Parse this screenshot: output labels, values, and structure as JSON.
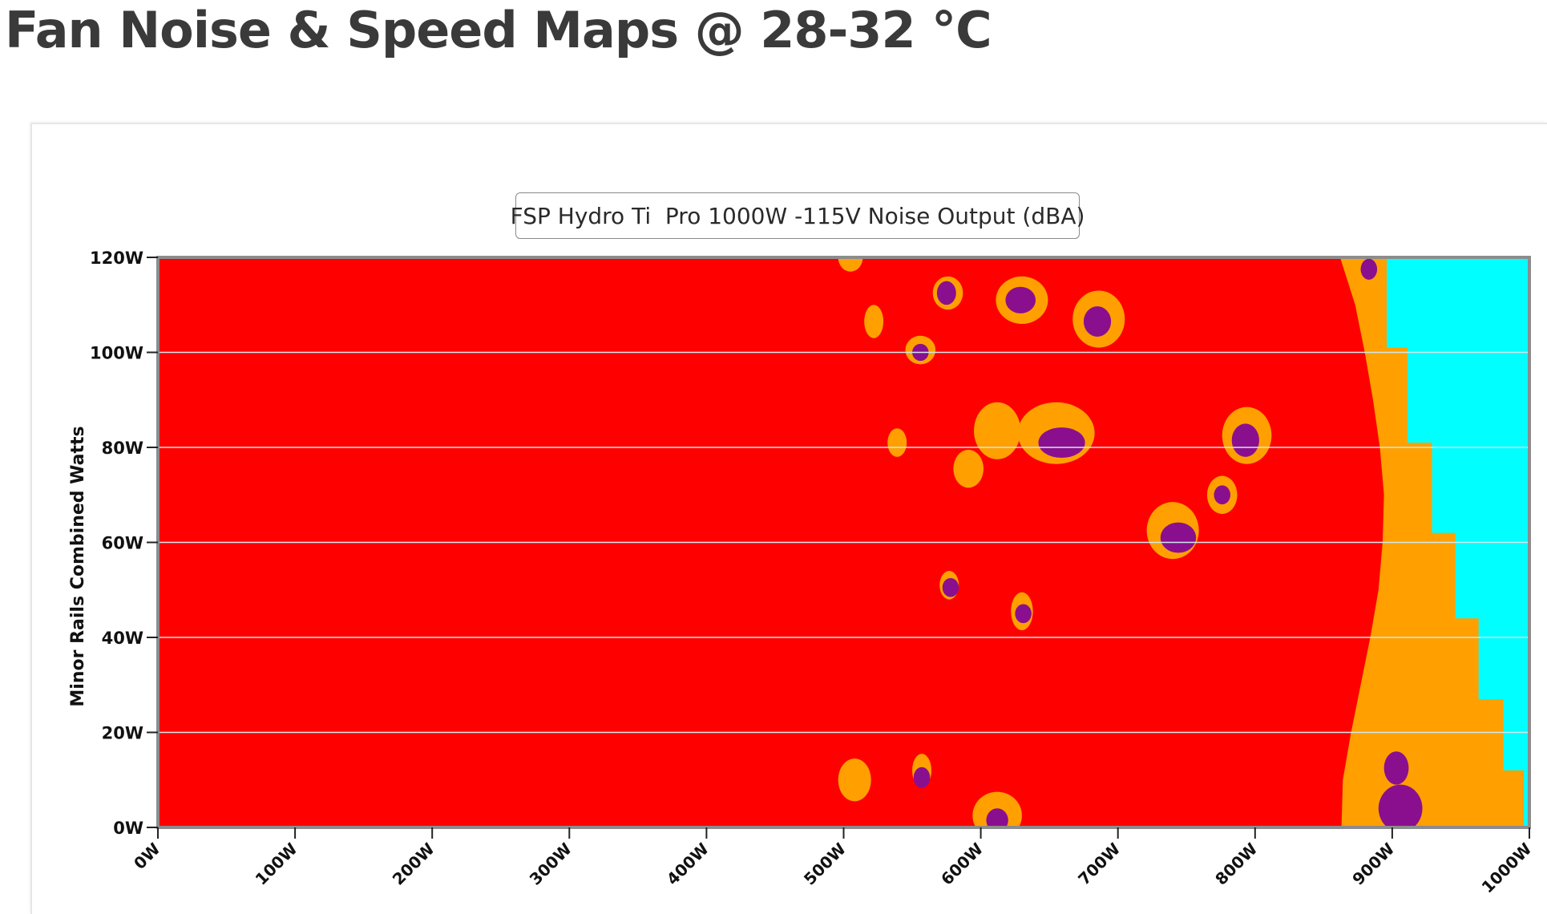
{
  "page": {
    "title": "Fan Noise & Speed Maps @ 28-32 °C"
  },
  "chart_data": {
    "type": "heatmap",
    "legend_label": "FSP Hydro Ti  Pro 1000W -115V Noise Output (dBA)",
    "xlabel": "",
    "ylabel": "Minor Rails Combined Watts",
    "x_tick_labels": [
      "0W",
      "100W",
      "200W",
      "300W",
      "400W",
      "500W",
      "600W",
      "700W",
      "800W",
      "900W",
      "1000W"
    ],
    "y_tick_labels": [
      "0W",
      "20W",
      "40W",
      "60W",
      "80W",
      "100W",
      "120W"
    ],
    "xlim": [
      0,
      1000
    ],
    "ylim": [
      0,
      120
    ],
    "grid": true,
    "colors": {
      "base": "#ff0000",
      "orange": "#ffa000",
      "purple": "#8a0f8f",
      "cyan": "#00ffff",
      "plot_border": "#8c8c8c",
      "grid": "#cfe8ee"
    },
    "orange_region_left_boundary": [
      [
        0,
        863
      ],
      [
        10,
        864
      ],
      [
        20,
        870
      ],
      [
        30,
        877
      ],
      [
        40,
        884
      ],
      [
        50,
        890
      ],
      [
        60,
        893
      ],
      [
        70,
        894
      ],
      [
        80,
        891
      ],
      [
        90,
        886
      ],
      [
        100,
        880
      ],
      [
        110,
        873
      ],
      [
        120,
        862
      ]
    ],
    "cyan_region_left_boundary": [
      [
        0,
        996
      ],
      [
        12,
        996
      ],
      [
        12,
        981
      ],
      [
        27,
        981
      ],
      [
        27,
        963
      ],
      [
        44,
        963
      ],
      [
        44,
        946
      ],
      [
        62,
        946
      ],
      [
        62,
        929
      ],
      [
        81,
        929
      ],
      [
        81,
        911
      ],
      [
        101,
        911
      ],
      [
        101,
        896
      ],
      [
        120,
        896
      ]
    ],
    "orange_spots": [
      {
        "x": 505,
        "y": 120,
        "rx": 9,
        "ry": 3
      },
      {
        "x": 576,
        "y": 112.5,
        "rx": 11,
        "ry": 3.5
      },
      {
        "x": 630,
        "y": 111,
        "rx": 19,
        "ry": 5
      },
      {
        "x": 686,
        "y": 107,
        "rx": 19,
        "ry": 6
      },
      {
        "x": 522,
        "y": 106.5,
        "rx": 7,
        "ry": 3.5
      },
      {
        "x": 556,
        "y": 100.5,
        "rx": 11,
        "ry": 3
      },
      {
        "x": 612,
        "y": 83.5,
        "rx": 17,
        "ry": 6
      },
      {
        "x": 655,
        "y": 83,
        "rx": 28,
        "ry": 6.5
      },
      {
        "x": 794,
        "y": 82.5,
        "rx": 18,
        "ry": 6
      },
      {
        "x": 539,
        "y": 81,
        "rx": 7,
        "ry": 3
      },
      {
        "x": 591,
        "y": 75.5,
        "rx": 11,
        "ry": 4
      },
      {
        "x": 776,
        "y": 70,
        "rx": 11,
        "ry": 4
      },
      {
        "x": 740,
        "y": 62.5,
        "rx": 19,
        "ry": 6
      },
      {
        "x": 577,
        "y": 51,
        "rx": 7,
        "ry": 3
      },
      {
        "x": 630,
        "y": 45.5,
        "rx": 8,
        "ry": 4
      },
      {
        "x": 508,
        "y": 10,
        "rx": 12,
        "ry": 4.5
      },
      {
        "x": 557,
        "y": 12,
        "rx": 7,
        "ry": 3.5
      },
      {
        "x": 612,
        "y": 2.5,
        "rx": 18,
        "ry": 5
      }
    ],
    "purple_spots": [
      {
        "x": 575,
        "y": 112.5,
        "rx": 7,
        "ry": 2.5
      },
      {
        "x": 629,
        "y": 111,
        "rx": 11,
        "ry": 2.8
      },
      {
        "x": 685,
        "y": 106.5,
        "rx": 10,
        "ry": 3.2
      },
      {
        "x": 556,
        "y": 100,
        "rx": 6,
        "ry": 1.8
      },
      {
        "x": 659,
        "y": 81,
        "rx": 17,
        "ry": 3.2
      },
      {
        "x": 793,
        "y": 81.5,
        "rx": 10,
        "ry": 3.5
      },
      {
        "x": 776,
        "y": 70,
        "rx": 6,
        "ry": 2
      },
      {
        "x": 744,
        "y": 61,
        "rx": 13,
        "ry": 3.2
      },
      {
        "x": 578,
        "y": 50.5,
        "rx": 6,
        "ry": 2
      },
      {
        "x": 631,
        "y": 45,
        "rx": 6,
        "ry": 2
      },
      {
        "x": 557,
        "y": 10.5,
        "rx": 6,
        "ry": 2.2
      },
      {
        "x": 612,
        "y": 1.5,
        "rx": 8,
        "ry": 2.5
      },
      {
        "x": 883,
        "y": 117.5,
        "rx": 6,
        "ry": 2.2
      },
      {
        "x": 906,
        "y": 4,
        "rx": 16,
        "ry": 5
      },
      {
        "x": 903,
        "y": 12.5,
        "rx": 9,
        "ry": 3.5
      }
    ]
  }
}
